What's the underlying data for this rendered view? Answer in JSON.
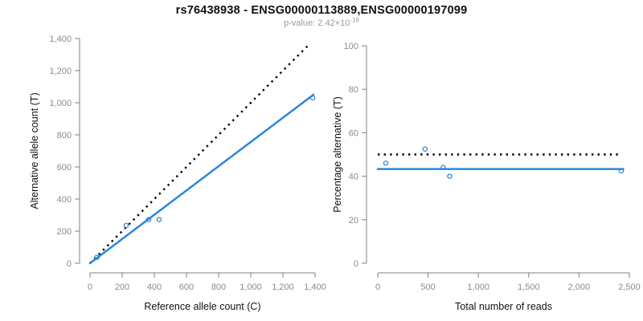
{
  "header": {
    "title": "rs76438938 - ENSG00000113889,ENSG00000197099",
    "p_value_label": "p-value: 2.42×10",
    "p_value_exponent": "-18"
  },
  "colors": {
    "accent_blue": "#2b86dd",
    "dotted_black": "#000000",
    "axis_line": "#808080",
    "tick_label": "#8a8a8a",
    "subtitle_gray": "#9b9b9b"
  },
  "chart_data": [
    {
      "type": "scatter",
      "title": "",
      "xlabel": "Reference allele count (C)",
      "ylabel": "Alternative allele count (T)",
      "xlim": [
        0,
        1400
      ],
      "ylim": [
        0,
        1400
      ],
      "xticks": [
        0,
        200,
        400,
        600,
        800,
        1000,
        1200,
        1400
      ],
      "xtick_labels": [
        "0",
        "200",
        "400",
        "600",
        "800",
        "1,000",
        "1,200",
        "1,400"
      ],
      "yticks": [
        0,
        200,
        400,
        600,
        800,
        1000,
        1200,
        1400
      ],
      "ytick_labels": [
        "0",
        "200",
        "400",
        "600",
        "800",
        "1,000",
        "1,200",
        "1,400"
      ],
      "grid": false,
      "legend": "none",
      "points": [
        [
          43,
          37
        ],
        [
          225,
          235
        ],
        [
          365,
          272
        ],
        [
          430,
          272
        ],
        [
          1385,
          1030
        ]
      ],
      "lines": [
        {
          "name": "identity-line",
          "style": "dotted",
          "color": "#000000",
          "points": [
            [
              0,
              0
            ],
            [
              1370,
              1370
            ]
          ]
        },
        {
          "name": "fit-line",
          "style": "solid",
          "color": "#2b86dd",
          "points": [
            [
              0,
              0
            ],
            [
              1390,
              1050
            ]
          ]
        }
      ]
    },
    {
      "type": "scatter",
      "title": "",
      "xlabel": "Total number of reads",
      "ylabel": "Percentage alternative (T)",
      "xlim": [
        0,
        2500
      ],
      "ylim": [
        0,
        100
      ],
      "xticks": [
        0,
        500,
        1000,
        1500,
        2000,
        2500
      ],
      "xtick_labels": [
        "0",
        "500",
        "1,000",
        "1,500",
        "2,000",
        "2,500"
      ],
      "yticks": [
        0,
        20,
        40,
        60,
        80,
        100
      ],
      "ytick_labels": [
        "0",
        "20",
        "40",
        "60",
        "80",
        "100"
      ],
      "grid": false,
      "legend": "none",
      "points": [
        [
          80,
          46
        ],
        [
          470,
          52.5
        ],
        [
          650,
          44
        ],
        [
          715,
          40
        ],
        [
          2420,
          42.5
        ]
      ],
      "lines": [
        {
          "name": "expected-50pct-line",
          "style": "dotted",
          "color": "#000000",
          "points": [
            [
              0,
              50
            ],
            [
              2390,
              50
            ]
          ]
        },
        {
          "name": "fit-line",
          "style": "solid",
          "color": "#2b86dd",
          "points": [
            [
              0,
              43.3
            ],
            [
              2440,
              43.3
            ]
          ]
        }
      ]
    }
  ]
}
